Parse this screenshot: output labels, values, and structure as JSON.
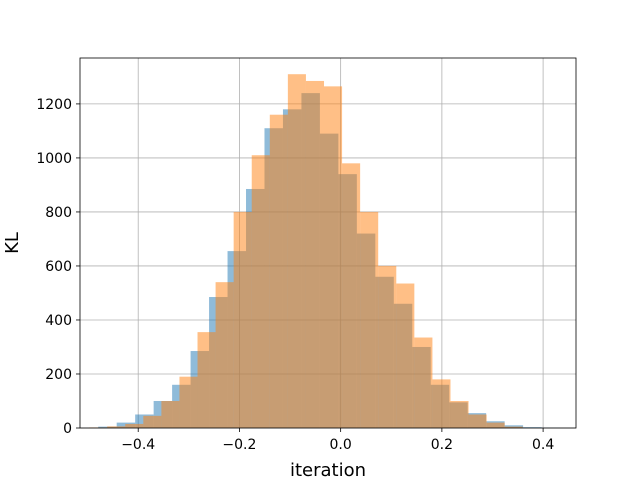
{
  "chart_data": {
    "type": "bar",
    "xlabel": "iteration",
    "ylabel": "KL",
    "xlim": [
      -0.515,
      0.465
    ],
    "ylim": [
      0,
      1370
    ],
    "grid": true,
    "xticks": [
      {
        "value": -0.4,
        "label": "−0.4"
      },
      {
        "value": -0.2,
        "label": "−0.2"
      },
      {
        "value": 0.0,
        "label": "0.0"
      },
      {
        "value": 0.2,
        "label": "0.2"
      },
      {
        "value": 0.4,
        "label": "0.4"
      }
    ],
    "yticks": [
      {
        "value": 0,
        "label": "0"
      },
      {
        "value": 200,
        "label": "200"
      },
      {
        "value": 400,
        "label": "400"
      },
      {
        "value": 600,
        "label": "600"
      },
      {
        "value": 800,
        "label": "800"
      },
      {
        "value": 1000,
        "label": "1000"
      },
      {
        "value": 1200,
        "label": "1200"
      }
    ],
    "series": [
      {
        "color": "#1f77b4",
        "opacity": 0.5,
        "bin_width": 0.0365,
        "bins_start": [
          -0.479,
          -0.4425,
          -0.406,
          -0.3695,
          -0.333,
          -0.2965,
          -0.26,
          -0.2235,
          -0.187,
          -0.1505,
          -0.114,
          -0.0775,
          -0.041,
          -0.0045,
          0.032,
          0.0685,
          0.105,
          0.1415,
          0.178,
          0.2145,
          0.251,
          0.2875,
          0.324,
          0.3605,
          0.397
        ],
        "values": [
          5,
          20,
          50,
          100,
          160,
          285,
          485,
          655,
          885,
          1110,
          1180,
          1240,
          1090,
          940,
          720,
          560,
          460,
          300,
          160,
          95,
          55,
          25,
          10,
          3,
          1
        ]
      },
      {
        "color": "#ff7f0e",
        "opacity": 0.5,
        "bin_width": 0.0357,
        "bins_start": [
          -0.497,
          -0.4613,
          -0.4256,
          -0.3899,
          -0.3542,
          -0.3185,
          -0.2828,
          -0.2471,
          -0.2114,
          -0.1757,
          -0.14,
          -0.1043,
          -0.0686,
          -0.0329,
          0.0028,
          0.0385,
          0.0742,
          0.1099,
          0.1456,
          0.1813,
          0.217,
          0.2527,
          0.2884,
          0.3241
        ],
        "values": [
          2,
          6,
          15,
          45,
          100,
          190,
          355,
          540,
          800,
          1010,
          1160,
          1310,
          1285,
          1265,
          980,
          800,
          600,
          535,
          335,
          180,
          100,
          50,
          20,
          5
        ]
      }
    ]
  }
}
